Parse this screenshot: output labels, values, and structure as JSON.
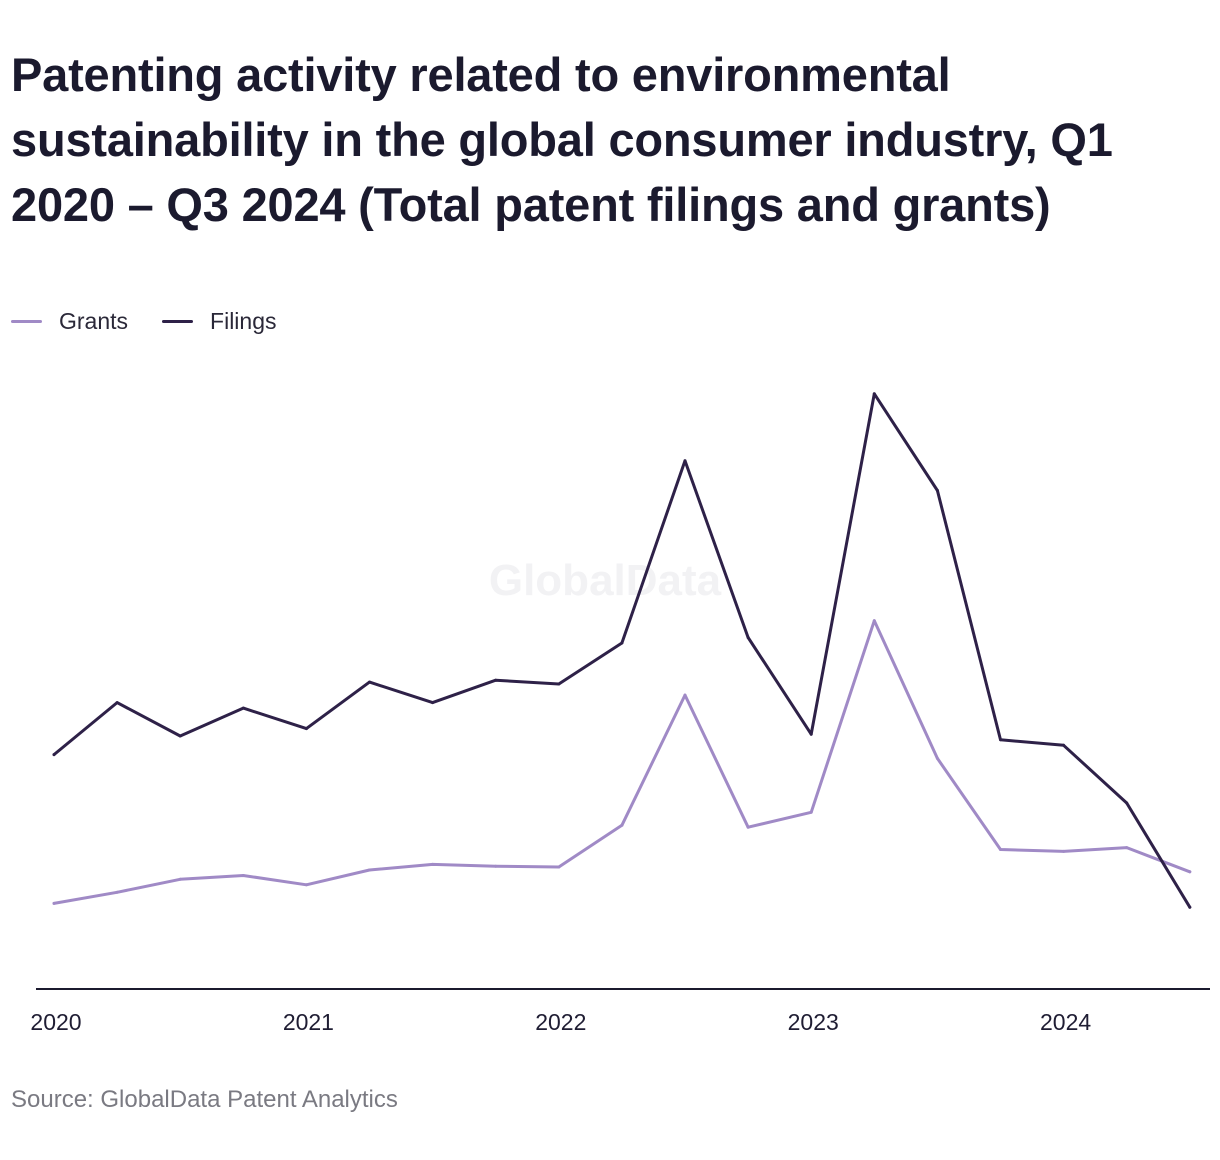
{
  "title": "Patenting activity related to environmental sustainability in the global consumer industry, Q1 2020 – Q3 2024 (Total patent filings and grants)",
  "source": "Source: GlobalData Patent Analytics",
  "watermark": "GlobalData",
  "colors": {
    "grants": "#a08ac6",
    "filings": "#2e2148",
    "axis": "#1b1a2e"
  },
  "chart_data": {
    "type": "line",
    "x": [
      "2020 Q1",
      "2020 Q2",
      "2020 Q3",
      "2020 Q4",
      "2021 Q1",
      "2021 Q2",
      "2021 Q3",
      "2021 Q4",
      "2022 Q1",
      "2022 Q2",
      "2022 Q3",
      "2022 Q4",
      "2023 Q1",
      "2023 Q2",
      "2023 Q3",
      "2023 Q4",
      "2024 Q1",
      "2024 Q2",
      "2024 Q3"
    ],
    "xtick_labels": [
      "2020",
      "2021",
      "2022",
      "2023",
      "2024"
    ],
    "series": [
      {
        "name": "Grants",
        "color": "#a08ac6",
        "values": [
          23,
          26,
          29.5,
          30.5,
          28,
          32,
          33.5,
          33,
          32.8,
          44,
          79,
          43.5,
          47.5,
          99,
          62,
          37.5,
          37,
          38,
          31.5
        ]
      },
      {
        "name": "Filings",
        "color": "#2e2148",
        "values": [
          63,
          77,
          68,
          75.5,
          70,
          82.5,
          77,
          83,
          82,
          93,
          142,
          94.5,
          68.5,
          160,
          134,
          67,
          65.5,
          50,
          22
        ]
      }
    ],
    "ylim": [
      0,
      180
    ],
    "grid": false,
    "legend_position": "top-left",
    "xlabel": "",
    "ylabel": ""
  }
}
